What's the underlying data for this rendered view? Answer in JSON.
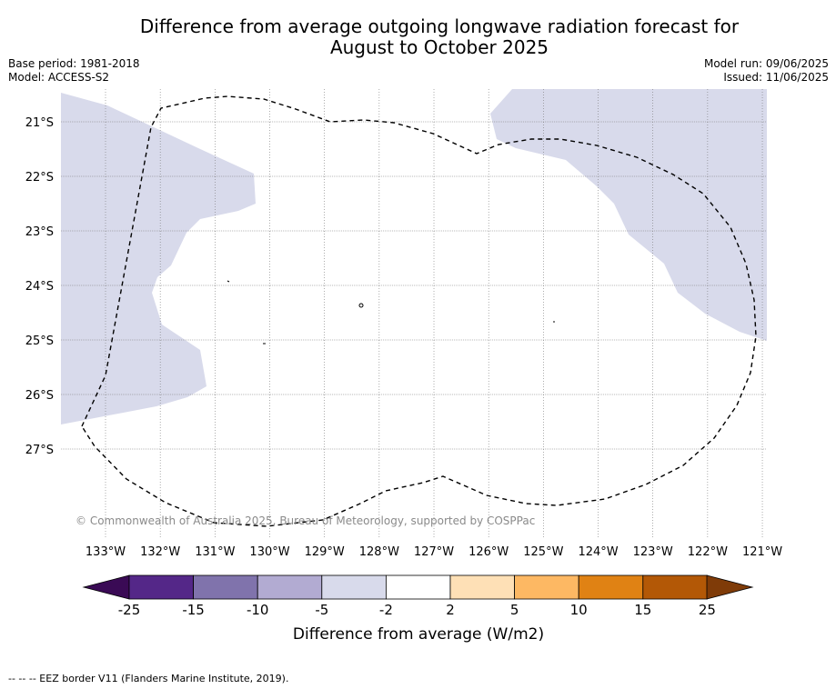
{
  "header": {
    "title_line1": "Difference from average outgoing longwave radiation forecast for",
    "title_line2": "August to October 2025",
    "base_period": "Base period: 1981-2018",
    "model": "Model: ACCESS-S2",
    "model_run": "Model run: 09/06/2025",
    "issued": "Issued: 11/06/2025"
  },
  "map": {
    "longitudes": [
      "133°W",
      "132°W",
      "131°W",
      "130°W",
      "129°W",
      "128°W",
      "127°W",
      "126°W",
      "125°W",
      "124°W",
      "123°W",
      "122°W",
      "121°W"
    ],
    "latitudes": [
      "21°S",
      "22°S",
      "23°S",
      "24°S",
      "25°S",
      "26°S",
      "27°S"
    ],
    "copyright": "© Commonwealth of Australia 2025, Bureau of Meteorology, supported by COSPPac",
    "anomaly_colors": {
      "lt_-25": "#3a0a55",
      "-25_-15": "#542788",
      "-15_-10": "#8073ac",
      "-10_-5": "#b2abd2",
      "-5_-2": "#d8daeb",
      "-2_2": "#ffffff",
      "2_5": "#fee0b6",
      "5_10": "#fdb863",
      "10_15": "#e08214",
      "15_25": "#b35806",
      "gt_25": "#7f3b08"
    }
  },
  "colorbar": {
    "ticks": [
      "-25",
      "-15",
      "-10",
      "-5",
      "-2",
      "2",
      "5",
      "10",
      "15",
      "25"
    ],
    "title": "Difference from average (W/m2)"
  },
  "footer": {
    "legend": "--  --  -- EEZ border V11 (Flanders Marine Institute, 2019)."
  }
}
